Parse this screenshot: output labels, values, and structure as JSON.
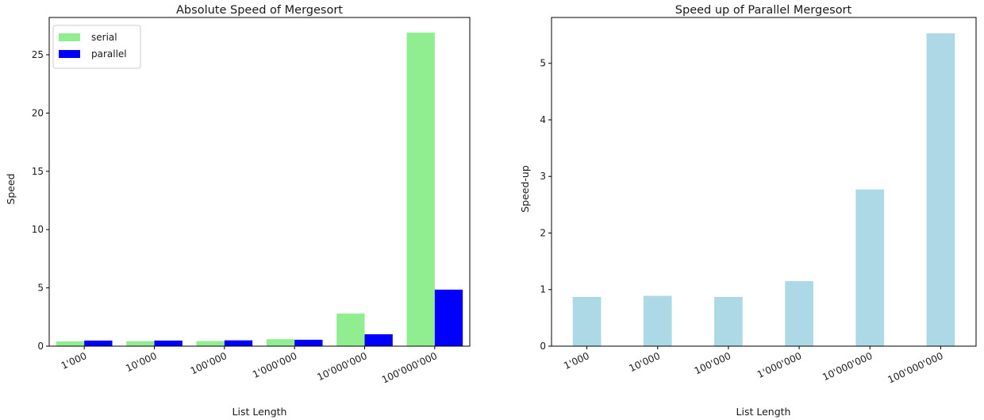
{
  "chart_data": [
    {
      "type": "bar",
      "title": "Absolute Speed of Mergesort",
      "xlabel": "List Length",
      "ylabel": "Speed",
      "categories": [
        "1'000",
        "10'000",
        "100'000",
        "1'000'000",
        "10'000'000",
        "100'000'000"
      ],
      "series": [
        {
          "name": "serial",
          "color": "#90ee90",
          "values": [
            0.41,
            0.43,
            0.44,
            0.6,
            2.8,
            26.9
          ]
        },
        {
          "name": "parallel",
          "color": "#0000ff",
          "values": [
            0.48,
            0.48,
            0.5,
            0.55,
            1.02,
            4.85
          ]
        }
      ],
      "ylim": [
        0,
        28.2
      ],
      "yticks": [
        0,
        5,
        10,
        15,
        20,
        25
      ],
      "legend": "top-left",
      "grid": false
    },
    {
      "type": "bar",
      "title": "Speed up of Parallel Mergesort",
      "xlabel": "List Length",
      "ylabel": "Speed-up",
      "categories": [
        "1'000",
        "10'000",
        "100'000",
        "1'000'000",
        "10'000'000",
        "100'000'000"
      ],
      "series": [
        {
          "color": "#add8e6",
          "values": [
            0.87,
            0.89,
            0.87,
            1.15,
            2.77,
            5.53
          ]
        }
      ],
      "ylim": [
        0,
        5.81
      ],
      "yticks": [
        0,
        1,
        2,
        3,
        4,
        5
      ],
      "grid": false
    }
  ]
}
